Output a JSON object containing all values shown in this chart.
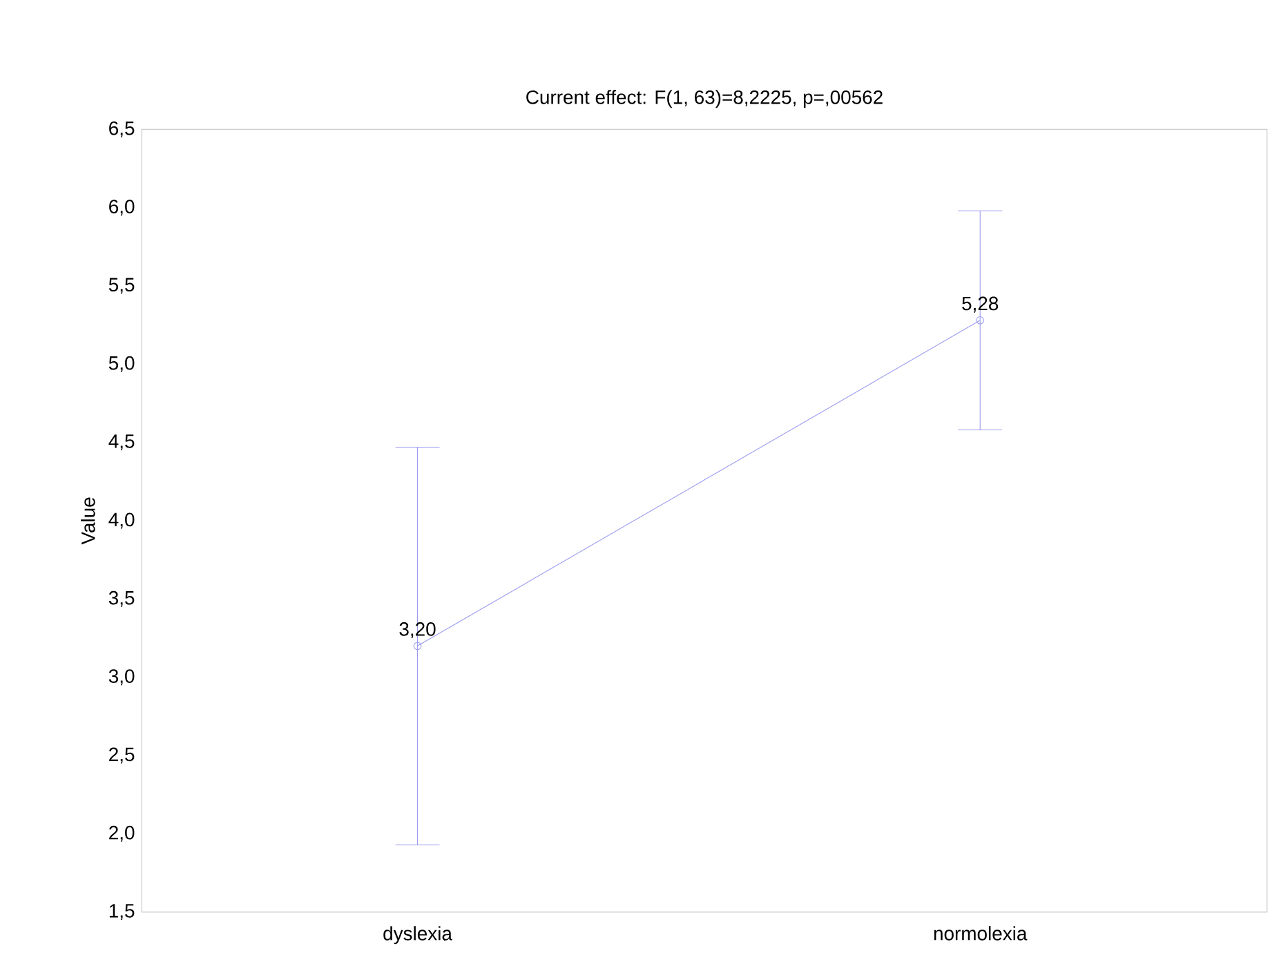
{
  "chart_data": {
    "type": "line",
    "title": "Current effect: F(1, 63)=8,2225, p=,00562",
    "ylabel": "Value",
    "categories": [
      "dyslexia",
      "normolexia"
    ],
    "series": [
      {
        "color": "#9a9af0",
        "values": [
          3.2,
          5.28
        ],
        "errors": [
          1.27,
          0.7
        ],
        "value_labels": [
          "3,20",
          "5,28"
        ]
      }
    ],
    "ylim": [
      1.5,
      6.5
    ],
    "yticks": [
      {
        "value": 1.5,
        "label": "1,5"
      },
      {
        "value": 2.0,
        "label": "2,0"
      },
      {
        "value": 2.5,
        "label": "2,5"
      },
      {
        "value": 3.0,
        "label": "3,0"
      },
      {
        "value": 3.5,
        "label": "3,5"
      },
      {
        "value": 4.0,
        "label": "4,0"
      },
      {
        "value": 4.5,
        "label": "4,5"
      },
      {
        "value": 5.0,
        "label": "5,0"
      },
      {
        "value": 5.5,
        "label": "5,5"
      },
      {
        "value": 6.0,
        "label": "6,0"
      },
      {
        "value": 6.5,
        "label": "6,5"
      }
    ],
    "marker": "circle",
    "line_style": "solid",
    "grid": false
  }
}
